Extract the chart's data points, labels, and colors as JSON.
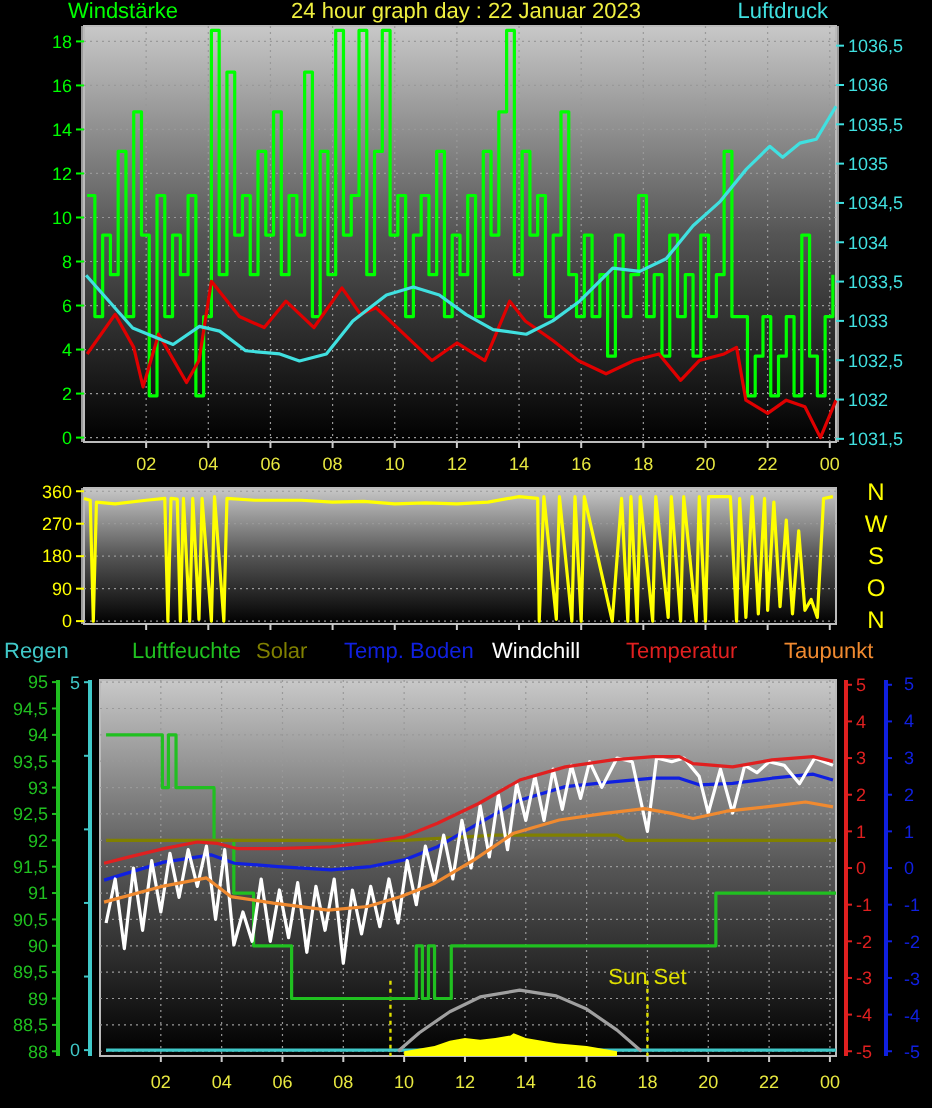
{
  "chart_data": [
    {
      "type": "line",
      "title": "24 hour graph day : 22 Januar 2023",
      "ylabel": "Windstärke",
      "y2label": "Luftdruck",
      "xlim": [
        "2023-01-22T00:00",
        "2023-01-23T00:12"
      ],
      "xticks": [
        {
          "value": "2023-01-22T02:00",
          "label": "02"
        },
        {
          "value": "2023-01-22T04:00",
          "label": "04"
        },
        {
          "value": "2023-01-22T06:00",
          "label": "06"
        },
        {
          "value": "2023-01-22T08:00",
          "label": "08"
        },
        {
          "value": "2023-01-22T10:00",
          "label": "10"
        },
        {
          "value": "2023-01-22T12:00",
          "label": "12"
        },
        {
          "value": "2023-01-22T14:00",
          "label": "14"
        },
        {
          "value": "2023-01-22T16:00",
          "label": "16"
        },
        {
          "value": "2023-01-22T18:00",
          "label": "18"
        },
        {
          "value": "2023-01-22T20:00",
          "label": "20"
        },
        {
          "value": "2023-01-22T22:00",
          "label": "22"
        },
        {
          "value": "2023-01-23T00:00",
          "label": "00"
        }
      ],
      "ylim": [
        -0.2,
        18.7
      ],
      "yticks": [
        0,
        2,
        4,
        6,
        8,
        10,
        12,
        14,
        16,
        18
      ],
      "y2lim": [
        1031.46,
        1036.75
      ],
      "y2ticks": [
        {
          "value": 1031.5,
          "label": "1031,5"
        },
        {
          "value": 1032,
          "label": "1032"
        },
        {
          "value": 1032.5,
          "label": "1032,5"
        },
        {
          "value": 1033,
          "label": "1033"
        },
        {
          "value": 1033.5,
          "label": "1033,5"
        },
        {
          "value": 1034,
          "label": "1034"
        },
        {
          "value": 1034.5,
          "label": "1034,5"
        },
        {
          "value": 1035,
          "label": "1035"
        },
        {
          "value": 1035.5,
          "label": "1035,5"
        },
        {
          "value": 1036,
          "label": "1036"
        },
        {
          "value": 1036.5,
          "label": "1036,5"
        }
      ],
      "grid": true,
      "series": [
        {
          "type": "step",
          "color": "#00ff00",
          "x": [
            "2023-01-22T00:06",
            "2023-01-22T00:21",
            "2023-01-22T00:36",
            "2023-01-22T00:51",
            "2023-01-22T01:06",
            "2023-01-22T01:21",
            "2023-01-22T01:36",
            "2023-01-22T01:51",
            "2023-01-22T02:06",
            "2023-01-22T02:21",
            "2023-01-22T02:36",
            "2023-01-22T02:51",
            "2023-01-22T03:06",
            "2023-01-22T03:21",
            "2023-01-22T03:36",
            "2023-01-22T03:51",
            "2023-01-22T04:06",
            "2023-01-22T04:21",
            "2023-01-22T04:36",
            "2023-01-22T04:51",
            "2023-01-22T05:06",
            "2023-01-22T05:21",
            "2023-01-22T05:36",
            "2023-01-22T05:51",
            "2023-01-22T06:06",
            "2023-01-22T06:21",
            "2023-01-22T06:36",
            "2023-01-22T06:51",
            "2023-01-22T07:06",
            "2023-01-22T07:21",
            "2023-01-22T07:36",
            "2023-01-22T07:51",
            "2023-01-22T08:06",
            "2023-01-22T08:21",
            "2023-01-22T08:36",
            "2023-01-22T08:51",
            "2023-01-22T09:06",
            "2023-01-22T09:21",
            "2023-01-22T09:36",
            "2023-01-22T09:51",
            "2023-01-22T10:06",
            "2023-01-22T10:21",
            "2023-01-22T10:36",
            "2023-01-22T10:51",
            "2023-01-22T11:06",
            "2023-01-22T11:21",
            "2023-01-22T11:36",
            "2023-01-22T11:51",
            "2023-01-22T12:06",
            "2023-01-22T12:21",
            "2023-01-22T12:36",
            "2023-01-22T12:51",
            "2023-01-22T13:06",
            "2023-01-22T13:21",
            "2023-01-22T13:36",
            "2023-01-22T13:51",
            "2023-01-22T14:06",
            "2023-01-22T14:21",
            "2023-01-22T14:36",
            "2023-01-22T14:51",
            "2023-01-22T15:06",
            "2023-01-22T15:21",
            "2023-01-22T15:36",
            "2023-01-22T15:51",
            "2023-01-22T16:06",
            "2023-01-22T16:21",
            "2023-01-22T16:36",
            "2023-01-22T16:51",
            "2023-01-22T17:06",
            "2023-01-22T17:21",
            "2023-01-22T17:36",
            "2023-01-22T17:51",
            "2023-01-22T18:06",
            "2023-01-22T18:21",
            "2023-01-22T18:36",
            "2023-01-22T18:51",
            "2023-01-22T19:06",
            "2023-01-22T19:21",
            "2023-01-22T19:36",
            "2023-01-22T19:51",
            "2023-01-22T20:06",
            "2023-01-22T20:21",
            "2023-01-22T20:36",
            "2023-01-22T20:51",
            "2023-01-22T21:06",
            "2023-01-22T21:21",
            "2023-01-22T21:36",
            "2023-01-22T21:51",
            "2023-01-22T22:06",
            "2023-01-22T22:21",
            "2023-01-22T22:36",
            "2023-01-22T22:51",
            "2023-01-22T23:06",
            "2023-01-22T23:21",
            "2023-01-22T23:36",
            "2023-01-22T23:51",
            "2023-01-23T00:06"
          ],
          "values": [
            11,
            5.5,
            9.2,
            7.4,
            13,
            5.5,
            14.8,
            9.2,
            1.9,
            11,
            5.5,
            9.2,
            7.4,
            11,
            1.9,
            5.5,
            18.5,
            7.4,
            16.6,
            9.2,
            11,
            7.4,
            13,
            9.2,
            14.8,
            7.4,
            11,
            9.2,
            16.6,
            5.5,
            13,
            7.4,
            18.5,
            9.2,
            11,
            18.5,
            7.4,
            13,
            18.5,
            9.2,
            11,
            5.5,
            9.2,
            11,
            7.4,
            13,
            5.5,
            9.2,
            7.4,
            11,
            5.5,
            13,
            9.2,
            14.8,
            18.5,
            7.4,
            13,
            9.2,
            11,
            5.5,
            9.2,
            14.8,
            7.4,
            5.5,
            9.2,
            5.5,
            7.4,
            3.7,
            9.2,
            5.5,
            7.4,
            11,
            5.5,
            7.4,
            3.7,
            9.2,
            5.5,
            7.4,
            3.7,
            9.2,
            5.5,
            7.4,
            13,
            5.5,
            5.5,
            1.9,
            3.7,
            5.5,
            1.9,
            3.7,
            5.5,
            1.9,
            9.2,
            3.7,
            1.9,
            5.5,
            7.4
          ]
        },
        {
          "type": "line",
          "color": "#e00000",
          "x": [
            "2023-01-22T00:06",
            "2023-01-22T01:00",
            "2023-01-22T01:36",
            "2023-01-22T01:54",
            "2023-01-22T02:24",
            "2023-01-22T03:18",
            "2023-01-22T03:42",
            "2023-01-22T04:06",
            "2023-01-22T05:00",
            "2023-01-22T05:48",
            "2023-01-22T06:30",
            "2023-01-22T07:24",
            "2023-01-22T08:18",
            "2023-01-22T08:54",
            "2023-01-22T09:24",
            "2023-01-22T10:18",
            "2023-01-22T11:12",
            "2023-01-22T12:00",
            "2023-01-22T12:54",
            "2023-01-22T13:42",
            "2023-01-22T14:12",
            "2023-01-22T15:06",
            "2023-01-22T15:54",
            "2023-01-22T16:48",
            "2023-01-22T17:42",
            "2023-01-22T18:30",
            "2023-01-22T19:12",
            "2023-01-22T19:48",
            "2023-01-22T20:36",
            "2023-01-22T21:00",
            "2023-01-22T21:18",
            "2023-01-22T22:00",
            "2023-01-22T22:36",
            "2023-01-22T23:12",
            "2023-01-22T23:42",
            "2023-01-23T00:12"
          ],
          "values": [
            3.8,
            5.6,
            4.1,
            2.3,
            4.7,
            2.5,
            3.5,
            7.1,
            5.5,
            5.0,
            6.2,
            5.0,
            6.8,
            5.6,
            5.9,
            4.7,
            3.5,
            4.3,
            3.5,
            6.2,
            5.3,
            4.4,
            3.5,
            2.9,
            3.5,
            3.8,
            2.6,
            3.5,
            3.8,
            4.1,
            1.7,
            1.1,
            1.7,
            1.4,
            0,
            1.7
          ]
        },
        {
          "type": "line",
          "axis": "y2",
          "color": "#40e0e0",
          "x": [
            "2023-01-22T00:04",
            "2023-01-22T01:34",
            "2023-01-22T02:52",
            "2023-01-22T03:43",
            "2023-01-22T04:22",
            "2023-01-22T05:12",
            "2023-01-22T06:18",
            "2023-01-22T06:56",
            "2023-01-22T07:48",
            "2023-01-22T08:39",
            "2023-01-22T09:44",
            "2023-01-22T10:36",
            "2023-01-22T11:26",
            "2023-01-22T12:18",
            "2023-01-22T13:10",
            "2023-01-22T14:14",
            "2023-01-22T15:05",
            "2023-01-22T15:57",
            "2023-01-22T17:01",
            "2023-01-22T17:53",
            "2023-01-22T18:44",
            "2023-01-22T19:36",
            "2023-01-22T20:27",
            "2023-01-22T21:19",
            "2023-01-22T22:04",
            "2023-01-22T22:29",
            "2023-01-22T23:02",
            "2023-01-22T23:34",
            "2023-01-23T00:12"
          ],
          "values": [
            1033.58,
            1032.91,
            1032.7,
            1032.93,
            1032.87,
            1032.62,
            1032.58,
            1032.49,
            1032.58,
            1033.0,
            1033.33,
            1033.43,
            1033.33,
            1033.08,
            1032.89,
            1032.83,
            1033.0,
            1033.25,
            1033.67,
            1033.63,
            1033.79,
            1034.21,
            1034.51,
            1034.93,
            1035.22,
            1035.08,
            1035.26,
            1035.31,
            1035.73
          ]
        }
      ]
    },
    {
      "type": "line",
      "xlim": [
        "2023-01-22T00:00",
        "2023-01-23T00:12"
      ],
      "ylim": [
        -8,
        369
      ],
      "yticks": [
        0,
        90,
        180,
        270,
        360
      ],
      "xticks": [
        {
          "value": "2023-01-22T02:00",
          "label": null
        },
        {
          "value": "2023-01-22T04:00",
          "label": null
        },
        {
          "value": "2023-01-22T06:00",
          "label": null
        },
        {
          "value": "2023-01-22T08:00",
          "label": null
        },
        {
          "value": "2023-01-22T10:00",
          "label": null
        },
        {
          "value": "2023-01-22T12:00",
          "label": null
        },
        {
          "value": "2023-01-22T14:00",
          "label": null
        },
        {
          "value": "2023-01-22T16:00",
          "label": null
        },
        {
          "value": "2023-01-22T18:00",
          "label": null
        },
        {
          "value": "2023-01-22T20:00",
          "label": null
        },
        {
          "value": "2023-01-22T22:00",
          "label": null
        },
        {
          "value": "2023-01-23T00:00",
          "label": null
        }
      ],
      "tick_labels": "y",
      "annotations": [
        "N",
        "W",
        "S",
        "O",
        "N"
      ],
      "grid": "y",
      "series": [
        {
          "type": "line",
          "color": "#ffff00",
          "x": [
            "2023-01-22T00:00",
            "2023-01-22T00:12",
            "2023-01-22T00:18",
            "2023-01-22T00:24",
            "2023-01-22T01:00",
            "2023-01-22T02:00",
            "2023-01-22T02:36",
            "2023-01-22T02:42",
            "2023-01-22T02:48",
            "2023-01-22T03:00",
            "2023-01-22T03:06",
            "2023-01-22T03:12",
            "2023-01-22T03:24",
            "2023-01-22T03:30",
            "2023-01-22T03:42",
            "2023-01-22T03:48",
            "2023-01-22T04:06",
            "2023-01-22T04:12",
            "2023-01-22T04:30",
            "2023-01-22T04:36",
            "2023-01-22T05:30",
            "2023-01-22T07:00",
            "2023-01-22T08:00",
            "2023-01-22T09:00",
            "2023-01-22T10:00",
            "2023-01-22T11:00",
            "2023-01-22T12:00",
            "2023-01-22T13:00",
            "2023-01-22T14:00",
            "2023-01-22T14:36",
            "2023-01-22T14:39",
            "2023-01-22T14:48",
            "2023-01-22T15:12",
            "2023-01-22T15:18",
            "2023-01-22T15:42",
            "2023-01-22T15:48",
            "2023-01-22T16:00",
            "2023-01-22T16:06",
            "2023-01-22T17:00",
            "2023-01-22T17:18",
            "2023-01-22T17:30",
            "2023-01-22T17:36",
            "2023-01-22T17:48",
            "2023-01-22T17:54",
            "2023-01-22T18:18",
            "2023-01-22T18:24",
            "2023-01-22T18:48",
            "2023-01-22T18:54",
            "2023-01-22T19:12",
            "2023-01-22T19:18",
            "2023-01-22T19:42",
            "2023-01-22T19:48",
            "2023-01-22T20:00",
            "2023-01-22T20:06",
            "2023-01-22T20:48",
            "2023-01-22T21:00",
            "2023-01-22T21:06",
            "2023-01-22T21:18",
            "2023-01-22T21:30",
            "2023-01-22T21:42",
            "2023-01-22T21:54",
            "2023-01-22T22:00",
            "2023-01-22T22:12",
            "2023-01-22T22:24",
            "2023-01-22T22:36",
            "2023-01-22T22:48",
            "2023-01-22T23:00",
            "2023-01-22T23:12",
            "2023-01-22T23:24",
            "2023-01-22T23:36",
            "2023-01-22T23:48",
            "2023-01-23T00:06"
          ],
          "values": [
            340,
            335,
            0,
            330,
            325,
            335,
            340,
            0,
            340,
            338,
            0,
            340,
            0,
            340,
            5,
            340,
            0,
            345,
            0,
            340,
            335,
            335,
            330,
            332,
            325,
            328,
            325,
            330,
            345,
            340,
            0,
            345,
            5,
            345,
            0,
            345,
            0,
            345,
            0,
            340,
            0,
            345,
            0,
            345,
            0,
            345,
            10,
            345,
            0,
            345,
            0,
            345,
            0,
            345,
            345,
            0,
            340,
            10,
            345,
            20,
            340,
            30,
            330,
            40,
            280,
            20,
            250,
            30,
            60,
            10,
            340,
            345
          ]
        }
      ]
    },
    {
      "type": "line",
      "legend": "top",
      "xlim": [
        "2023-01-22T00:00",
        "2023-01-23T00:12"
      ],
      "xticks": [
        {
          "value": "2023-01-22T02:00",
          "label": "02"
        },
        {
          "value": "2023-01-22T04:00",
          "label": "04"
        },
        {
          "value": "2023-01-22T06:00",
          "label": "06"
        },
        {
          "value": "2023-01-22T08:00",
          "label": "08"
        },
        {
          "value": "2023-01-22T10:00",
          "label": "10"
        },
        {
          "value": "2023-01-22T12:00",
          "label": "12"
        },
        {
          "value": "2023-01-22T14:00",
          "label": "14"
        },
        {
          "value": "2023-01-22T16:00",
          "label": "16"
        },
        {
          "value": "2023-01-22T18:00",
          "label": "18"
        },
        {
          "value": "2023-01-22T20:00",
          "label": "20"
        },
        {
          "value": "2023-01-22T22:00",
          "label": "22"
        },
        {
          "value": "2023-01-23T00:00",
          "label": "00"
        }
      ],
      "ylim": [
        87.91,
        95.04
      ],
      "yticks": [
        88,
        {
          "value": 88.5,
          "label": "88,5"
        },
        89,
        {
          "value": 89.5,
          "label": "89,5"
        },
        90,
        {
          "value": 90.5,
          "label": "90,5"
        },
        91,
        {
          "value": 91.5,
          "label": "91,5"
        },
        92,
        {
          "value": 92.5,
          "label": "92,5"
        },
        93,
        {
          "value": 93.5,
          "label": "93,5"
        },
        94,
        {
          "value": 94.5,
          "label": "94,5"
        },
        95
      ],
      "y2lim": [
        -5.13,
        5.13
      ],
      "y2ticks": [
        -5,
        -4,
        -3,
        -2,
        -1,
        0,
        1,
        2,
        3,
        4,
        5
      ],
      "annotations": [
        "5",
        "4",
        "3",
        "2",
        "1",
        "0",
        "-1",
        "-2",
        "-3",
        "-4",
        "-5"
      ],
      "y3lim": [
        -0.08,
        5.03
      ],
      "y3ticks": [
        0,
        {
          "value": 1,
          "label": null
        },
        {
          "value": 2,
          "label": null
        },
        {
          "value": 3,
          "label": null
        },
        {
          "value": 4,
          "label": null
        },
        5
      ],
      "grid": true,
      "ref_lines": [
        {
          "axis": "x",
          "value": "2023-01-22T09:33",
          "label": null,
          "color": "#e0e000",
          "line_style": "dotted"
        },
        {
          "axis": "x",
          "value": "2023-01-22T18:00",
          "label": "Sun Set",
          "color": "#e0e000",
          "line_style": "dotted"
        }
      ],
      "series": [
        {
          "name": "Regen",
          "type": "line",
          "axis": "y3",
          "color": "#40c8c8",
          "x": [
            "2023-01-22T00:12",
            "2023-01-23T00:12"
          ],
          "values": [
            0,
            0
          ]
        },
        {
          "name": "Luftfeuchte",
          "type": "step",
          "color": "#20c020",
          "x": [
            "2023-01-22T00:12",
            "2023-01-22T02:03",
            "2023-01-22T02:15",
            "2023-01-22T02:30",
            "2023-01-22T03:45",
            "2023-01-22T04:24",
            "2023-01-22T05:03",
            "2023-01-22T06:18",
            "2023-01-22T10:24",
            "2023-01-22T10:36",
            "2023-01-22T10:48",
            "2023-01-22T11:00",
            "2023-01-22T11:33",
            "2023-01-22T20:15",
            "2023-01-23T00:12"
          ],
          "values": [
            94,
            93,
            94,
            93,
            92,
            91,
            90,
            89,
            90,
            89,
            90,
            89,
            90,
            91,
            91
          ]
        },
        {
          "name": "Solar",
          "type": "line",
          "color": "#808000",
          "x": [
            "2023-01-22T00:12",
            "2023-01-22T10:00",
            "2023-01-22T13:00",
            "2023-01-22T17:00",
            "2023-01-22T17:18",
            "2023-01-23T00:12"
          ],
          "values": [
            92.0,
            92.0,
            92.1,
            92.1,
            92.0,
            92.0
          ]
        },
        {
          "type": "line",
          "color": "#a0a0a0",
          "x": [
            "2023-01-22T09:48",
            "2023-01-22T10:30",
            "2023-01-22T11:30",
            "2023-01-22T12:30",
            "2023-01-22T13:48",
            "2023-01-22T15:00",
            "2023-01-22T16:00",
            "2023-01-22T17:00",
            "2023-01-22T17:48"
          ],
          "values": [
            88,
            88.35,
            88.75,
            89.03,
            89.16,
            89.05,
            88.8,
            88.4,
            88.0
          ]
        },
        {
          "type": "area",
          "color": "#ffff00",
          "x": [
            "2023-01-22T10:00",
            "2023-01-22T11:00",
            "2023-01-22T11:30",
            "2023-01-22T12:00",
            "2023-01-22T12:30",
            "2023-01-22T13:00",
            "2023-01-22T13:30",
            "2023-01-22T13:36",
            "2023-01-22T14:00",
            "2023-01-22T15:00",
            "2023-01-22T16:00",
            "2023-01-22T17:00"
          ],
          "values": [
            88,
            88.1,
            88.2,
            88.25,
            88.22,
            88.25,
            88.3,
            88.34,
            88.25,
            88.15,
            88.1,
            88.0
          ]
        },
        {
          "name": "Temp. Boden",
          "type": "line",
          "axis": "y2",
          "color": "#1020e0",
          "x": [
            "2023-01-22T00:08",
            "2023-01-22T02:06",
            "2023-01-22T03:39",
            "2023-01-22T04:25",
            "2023-01-22T05:51",
            "2023-01-22T07:36",
            "2023-01-22T08:54",
            "2023-01-22T10:00",
            "2023-01-22T11:06",
            "2023-01-22T12:27",
            "2023-01-22T13:48",
            "2023-01-22T15:18",
            "2023-01-22T16:51",
            "2023-01-22T18:12",
            "2023-01-22T19:03",
            "2023-01-22T19:42",
            "2023-01-22T20:48",
            "2023-01-22T22:06",
            "2023-01-22T23:27",
            "2023-01-23T00:06"
          ],
          "values": [
            -0.33,
            0.16,
            0.36,
            0.13,
            0.04,
            -0.05,
            0.04,
            0.22,
            0.58,
            1.22,
            1.85,
            2.22,
            2.35,
            2.45,
            2.45,
            2.27,
            2.31,
            2.45,
            2.56,
            2.4
          ]
        },
        {
          "name": "Windchill",
          "type": "line",
          "axis": "y2",
          "color": "#ffffff",
          "x": [
            "2023-01-22T00:12",
            "2023-01-22T00:30",
            "2023-01-22T00:48",
            "2023-01-22T01:06",
            "2023-01-22T01:24",
            "2023-01-22T01:42",
            "2023-01-22T02:00",
            "2023-01-22T02:18",
            "2023-01-22T02:36",
            "2023-01-22T02:54",
            "2023-01-22T03:12",
            "2023-01-22T03:30",
            "2023-01-22T03:48",
            "2023-01-22T04:06",
            "2023-01-22T04:24",
            "2023-01-22T04:42",
            "2023-01-22T05:00",
            "2023-01-22T05:18",
            "2023-01-22T05:36",
            "2023-01-22T05:54",
            "2023-01-22T06:12",
            "2023-01-22T06:30",
            "2023-01-22T06:48",
            "2023-01-22T07:06",
            "2023-01-22T07:24",
            "2023-01-22T07:42",
            "2023-01-22T08:00",
            "2023-01-22T08:18",
            "2023-01-22T08:36",
            "2023-01-22T08:54",
            "2023-01-22T09:12",
            "2023-01-22T09:30",
            "2023-01-22T09:48",
            "2023-01-22T10:06",
            "2023-01-22T10:24",
            "2023-01-22T10:42",
            "2023-01-22T11:00",
            "2023-01-22T11:18",
            "2023-01-22T11:36",
            "2023-01-22T11:54",
            "2023-01-22T12:12",
            "2023-01-22T12:30",
            "2023-01-22T12:48",
            "2023-01-22T13:06",
            "2023-01-22T13:24",
            "2023-01-22T13:42",
            "2023-01-22T14:00",
            "2023-01-22T14:18",
            "2023-01-22T14:36",
            "2023-01-22T14:54",
            "2023-01-22T15:12",
            "2023-01-22T15:30",
            "2023-01-22T15:48",
            "2023-01-22T16:06",
            "2023-01-22T16:30",
            "2023-01-22T17:00",
            "2023-01-22T17:30",
            "2023-01-22T18:00",
            "2023-01-22T18:18",
            "2023-01-22T18:48",
            "2023-01-22T19:12",
            "2023-01-22T19:42",
            "2023-01-22T20:00",
            "2023-01-22T20:24",
            "2023-01-22T20:48",
            "2023-01-22T21:12",
            "2023-01-22T21:36",
            "2023-01-22T22:00",
            "2023-01-22T22:30",
            "2023-01-22T23:00",
            "2023-01-22T23:30",
            "2023-01-23T00:06"
          ],
          "values": [
            -1.5,
            -0.3,
            -2.2,
            0.0,
            -1.7,
            0.2,
            -1.2,
            0.4,
            -0.8,
            0.5,
            -0.5,
            0.6,
            -1.4,
            0.5,
            -2.1,
            -1.2,
            -2.0,
            -0.3,
            -2.0,
            -0.6,
            -1.9,
            -0.4,
            -2.3,
            -0.5,
            -1.7,
            -0.3,
            -2.6,
            -0.6,
            -1.8,
            -0.5,
            -1.6,
            -0.3,
            -1.5,
            0.2,
            -1.0,
            0.6,
            -0.4,
            0.9,
            -0.3,
            1.3,
            0.0,
            1.7,
            0.3,
            2.0,
            0.5,
            2.3,
            1.3,
            2.5,
            1.3,
            2.7,
            1.6,
            2.8,
            1.9,
            2.9,
            2.2,
            3.0,
            2.9,
            1.0,
            3.0,
            2.9,
            3.0,
            2.5,
            1.5,
            2.7,
            1.5,
            2.8,
            2.6,
            2.9,
            2.8,
            2.3,
            3.0,
            2.8
          ]
        },
        {
          "name": "Temperatur",
          "type": "line",
          "axis": "y2",
          "color": "#e02020",
          "x": [
            "2023-01-22T00:08",
            "2023-01-22T01:00",
            "2023-01-22T02:06",
            "2023-01-22T03:12",
            "2023-01-22T03:52",
            "2023-01-22T04:30",
            "2023-01-22T05:51",
            "2023-01-22T07:36",
            "2023-01-22T08:54",
            "2023-01-22T10:00",
            "2023-01-22T11:06",
            "2023-01-22T12:27",
            "2023-01-22T13:48",
            "2023-01-22T15:18",
            "2023-01-22T16:51",
            "2023-01-22T18:12",
            "2023-01-22T19:03",
            "2023-01-22T19:30",
            "2023-01-22T20:48",
            "2023-01-22T22:06",
            "2023-01-22T23:27",
            "2023-01-23T00:06"
          ],
          "values": [
            0.13,
            0.31,
            0.53,
            0.71,
            0.67,
            0.53,
            0.53,
            0.58,
            0.71,
            0.85,
            1.22,
            1.76,
            2.4,
            2.76,
            2.95,
            3.04,
            3.04,
            2.85,
            2.76,
            2.95,
            3.04,
            2.91
          ]
        },
        {
          "name": "Taupunkt",
          "type": "line",
          "axis": "y2",
          "color": "#f08a30",
          "x": [
            "2023-01-22T00:08",
            "2023-01-22T02:00",
            "2023-01-22T03:30",
            "2023-01-22T04:18",
            "2023-01-22T05:42",
            "2023-01-22T07:30",
            "2023-01-22T08:48",
            "2023-01-22T09:54",
            "2023-01-22T11:00",
            "2023-01-22T12:18",
            "2023-01-22T13:36",
            "2023-01-22T15:06",
            "2023-01-22T16:36",
            "2023-01-22T17:54",
            "2023-01-22T18:48",
            "2023-01-22T19:30",
            "2023-01-22T20:36",
            "2023-01-22T21:54",
            "2023-01-22T23:12",
            "2023-01-23T00:06"
          ],
          "values": [
            -0.93,
            -0.51,
            -0.27,
            -0.78,
            -0.96,
            -1.15,
            -1.05,
            -0.78,
            -0.42,
            0.22,
            0.95,
            1.31,
            1.49,
            1.62,
            1.49,
            1.35,
            1.55,
            1.67,
            1.8,
            1.67
          ]
        }
      ]
    }
  ]
}
